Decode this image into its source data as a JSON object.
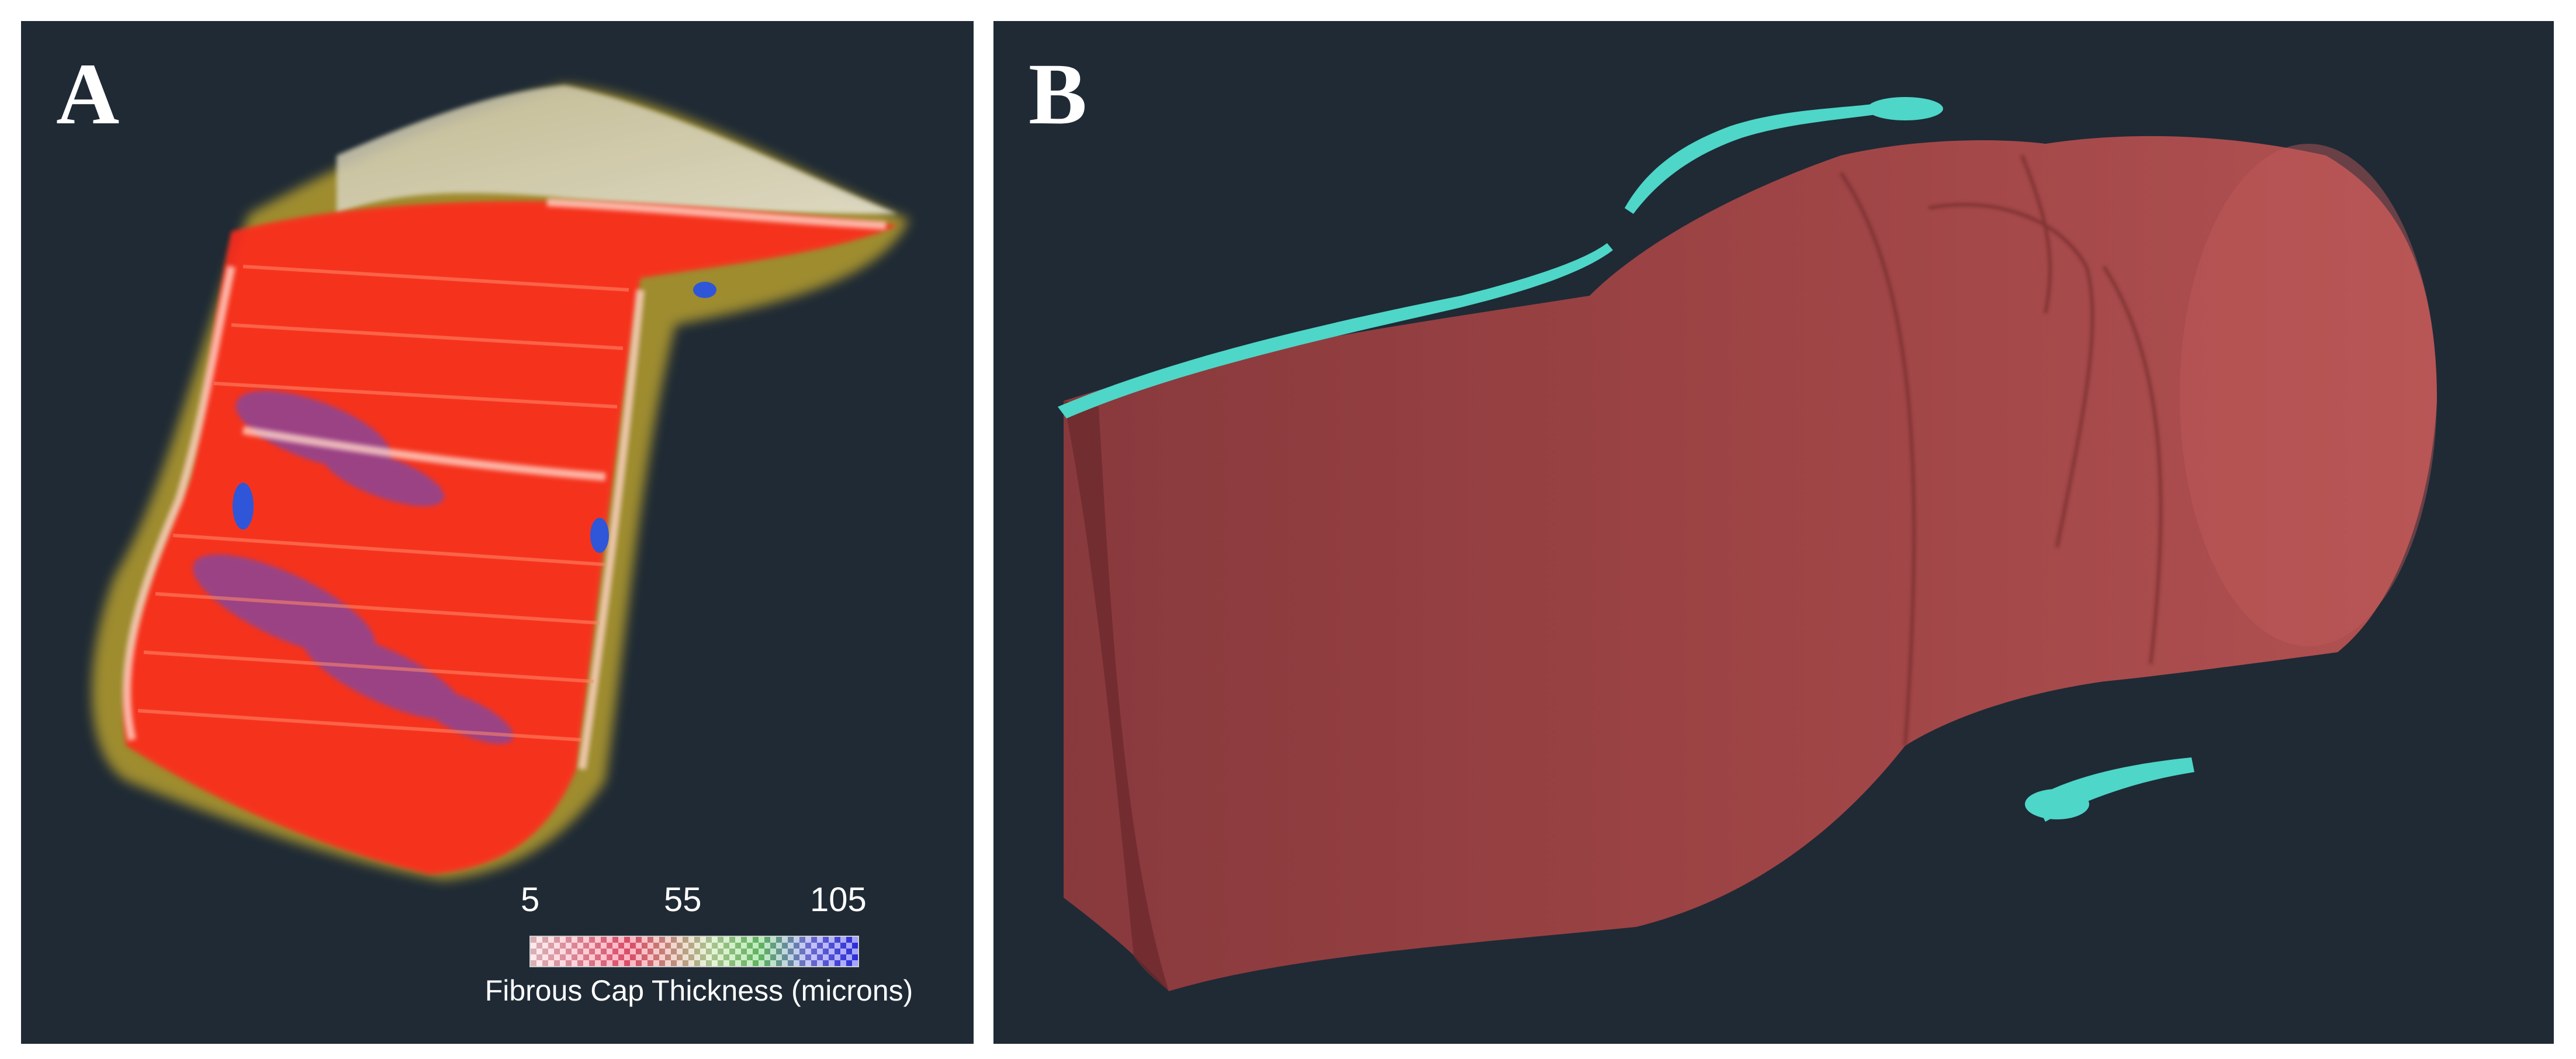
{
  "panel_a": {
    "letter": "A",
    "colorbar": {
      "ticks": [
        "5",
        "55",
        "105"
      ],
      "label": "Fibrous Cap Thickness (microns)"
    }
  },
  "panel_b": {
    "letter": "B"
  },
  "colors": {
    "background": "#1f2a35",
    "vessel_red": "#b84a4a",
    "thickness_red": "#ff2a1a",
    "calcium_yellow": "#d8c23a",
    "cyan_structure": "#4ed6c8"
  }
}
